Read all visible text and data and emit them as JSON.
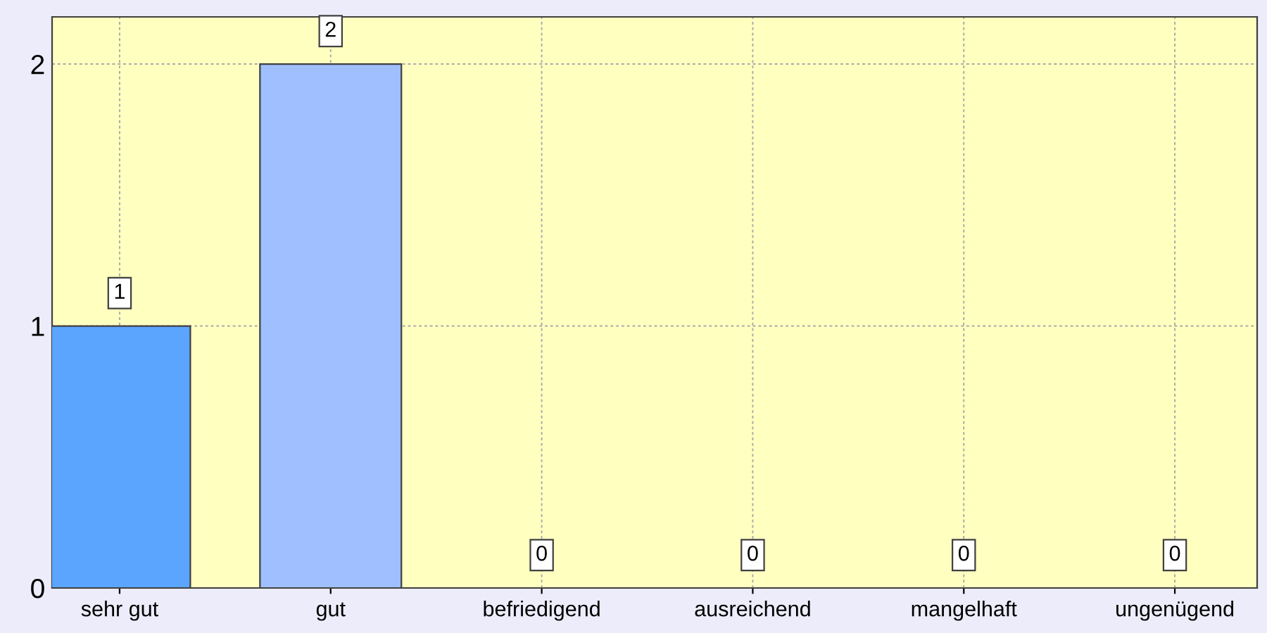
{
  "chart_data": {
    "type": "bar",
    "categories": [
      "sehr gut",
      "gut",
      "befriedigend",
      "ausreichend",
      "mangelhaft",
      "ungenügend"
    ],
    "values": [
      1,
      2,
      0,
      0,
      0,
      0
    ],
    "colors": [
      "#5ba5ff",
      "#a0bfff",
      "#a0bfff",
      "#a0bfff",
      "#a0bfff",
      "#a0bfff"
    ],
    "ylim": [
      0,
      2.18
    ],
    "yticks": [
      0,
      1,
      2
    ],
    "grid": true,
    "data_labels": true
  }
}
